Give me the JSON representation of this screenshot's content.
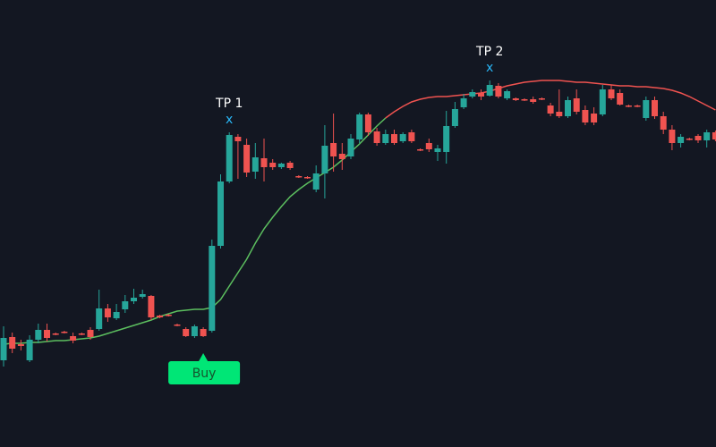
{
  "chart_data": {
    "type": "candlestick",
    "ylim": [
      0,
      500
    ],
    "up_color": "#26a69a",
    "down_color": "#ef5350",
    "background": "#131722",
    "open": [
      97,
      123,
      115,
      97,
      120,
      131,
      127,
      129,
      124,
      127,
      131,
      132,
      155,
      144,
      154,
      163,
      168,
      169,
      147,
      148,
      137,
      132,
      124,
      132,
      130,
      225,
      297,
      347,
      338,
      308,
      323,
      318,
      313,
      318,
      303,
      302,
      288,
      306,
      340,
      328,
      325,
      344,
      372,
      353,
      340,
      350,
      342,
      352,
      333,
      340,
      330,
      330,
      359,
      380,
      392,
      396,
      393,
      404,
      390,
      390,
      389,
      389,
      390,
      382,
      375,
      370,
      390,
      377,
      373,
      372,
      400,
      396,
      382,
      382,
      368,
      388,
      370,
      355,
      340,
      345,
      348,
      343,
      352
    ],
    "high": [
      135,
      128,
      120,
      125,
      138,
      138,
      128,
      130,
      128,
      128,
      134,
      176,
      160,
      160,
      170,
      177,
      176,
      170,
      148,
      149,
      138,
      134,
      137,
      134,
      232,
      305,
      352,
      350,
      345,
      340,
      345,
      322,
      318,
      320,
      304,
      303,
      315,
      360,
      373,
      340,
      350,
      374,
      374,
      357,
      355,
      355,
      352,
      355,
      334,
      345,
      338,
      376,
      386,
      395,
      400,
      400,
      410,
      407,
      400,
      391,
      390,
      392,
      391,
      385,
      400,
      392,
      400,
      382,
      380,
      405,
      405,
      400,
      383,
      383,
      392,
      392,
      375,
      360,
      350,
      346,
      350,
      355,
      354
    ],
    "low": [
      90,
      105,
      108,
      95,
      116,
      118,
      125,
      127,
      116,
      125,
      120,
      130,
      140,
      142,
      150,
      160,
      166,
      142,
      144,
      146,
      135,
      123,
      122,
      123,
      128,
      222,
      295,
      300,
      302,
      300,
      297,
      310,
      311,
      310,
      301,
      300,
      285,
      278,
      308,
      310,
      322,
      340,
      348,
      337,
      338,
      338,
      340,
      340,
      331,
      330,
      320,
      317,
      357,
      378,
      390,
      388,
      392,
      390,
      388,
      387,
      387,
      384,
      388,
      370,
      368,
      368,
      372,
      360,
      360,
      370,
      388,
      382,
      380,
      380,
      365,
      367,
      350,
      332,
      335,
      343,
      340,
      335,
      342
    ],
    "close": [
      122,
      110,
      113,
      120,
      131,
      122,
      126,
      128,
      119,
      126,
      123,
      155,
      145,
      151,
      163,
      167,
      171,
      145,
      145,
      147,
      136,
      124,
      135,
      124,
      225,
      297,
      349,
      342,
      307,
      324,
      313,
      313,
      317,
      312,
      302,
      301,
      306,
      337,
      325,
      322,
      345,
      372,
      352,
      340,
      350,
      340,
      350,
      342,
      332,
      333,
      334,
      359,
      378,
      390,
      397,
      392,
      405,
      392,
      398,
      388,
      388,
      386,
      389,
      373,
      370,
      388,
      375,
      363,
      363,
      400,
      390,
      383,
      381,
      381,
      388,
      370,
      355,
      340,
      347,
      344,
      343,
      352,
      344
    ],
    "lines": [
      {
        "color": "#5cbf5f",
        "values": [
          115,
          116,
          116,
          117,
          117,
          118,
          119,
          119,
          120,
          121,
          122,
          124,
          127,
          130,
          133,
          136,
          139,
          142,
          146,
          149,
          152,
          153,
          154,
          154,
          156,
          165,
          180,
          195,
          210,
          228,
          244,
          257,
          269,
          280,
          288,
          295,
          301,
          307,
          313,
          321,
          330,
          339,
          349,
          359,
          368,
          null,
          null,
          null,
          null,
          null,
          null,
          null,
          null,
          null,
          null,
          null,
          null,
          null,
          null,
          null,
          null,
          null,
          null,
          null,
          null,
          null,
          null,
          null,
          null,
          null,
          null,
          null,
          null,
          null,
          null,
          null,
          null,
          null,
          null,
          null,
          null,
          null,
          null
        ]
      },
      {
        "color": "#f05350",
        "values": [
          null,
          null,
          null,
          null,
          null,
          null,
          null,
          null,
          null,
          null,
          null,
          null,
          null,
          null,
          null,
          null,
          null,
          null,
          null,
          null,
          null,
          null,
          null,
          null,
          null,
          null,
          null,
          null,
          null,
          null,
          null,
          null,
          null,
          null,
          null,
          null,
          null,
          null,
          null,
          null,
          null,
          null,
          null,
          null,
          368,
          375,
          381,
          386,
          389,
          391,
          392,
          392,
          393,
          394,
          395,
          396,
          398,
          401,
          404,
          406,
          408,
          409,
          410,
          410,
          410,
          409,
          408,
          408,
          407,
          406,
          405,
          404,
          404,
          403,
          403,
          402,
          401,
          399,
          396,
          392,
          387,
          382,
          377
        ]
      }
    ],
    "annotations": [
      {
        "text": "TP 1",
        "marker": "x",
        "candle": 26,
        "marker_color": "#29b6f6"
      },
      {
        "text": "TP 2",
        "marker": "x",
        "candle": 56,
        "marker_color": "#29b6f6"
      }
    ],
    "signal": {
      "text": "Buy",
      "candle": 23,
      "color": "#00e676"
    }
  }
}
